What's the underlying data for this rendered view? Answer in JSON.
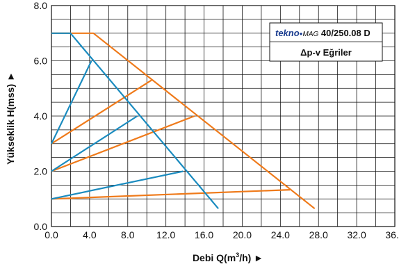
{
  "chart_data": {
    "type": "line",
    "xlabel": "Debi Q(m",
    "xlabel_sup": "3",
    "xlabel_tail": "/h) ►",
    "ylabel": "Yükseklik H(mss) ►",
    "xlim": [
      0,
      36
    ],
    "ylim": [
      0,
      8
    ],
    "x_grid_step": 2,
    "y_grid_step": 0.5,
    "grid": true,
    "x_ticks": [
      {
        "v": 0,
        "label": "0.0"
      },
      {
        "v": 4,
        "label": "4.0"
      },
      {
        "v": 8,
        "label": "8.0"
      },
      {
        "v": 12,
        "label": "12.0"
      },
      {
        "v": 16,
        "label": "16.0"
      },
      {
        "v": 20,
        "label": "20.0"
      },
      {
        "v": 24,
        "label": "24.0"
      },
      {
        "v": 28,
        "label": "28.0"
      },
      {
        "v": 32,
        "label": "32.0"
      },
      {
        "v": 36,
        "label": "36.0"
      }
    ],
    "y_ticks": [
      {
        "v": 0,
        "label": "0.0"
      },
      {
        "v": 2,
        "label": "2.0"
      },
      {
        "v": 4,
        "label": "4.0"
      },
      {
        "v": 6,
        "label": "6.0"
      },
      {
        "v": 8,
        "label": "8.0"
      }
    ],
    "title_box": {
      "brand": "tekno",
      "brand_mark": "●",
      "model_prefix": "MAG",
      "model": " 40/250.08 D",
      "subtitle": "Δp-v Eğriler"
    },
    "colors": {
      "blue": "#1a8bbf",
      "orange": "#ef7a1a"
    },
    "series": [
      {
        "color": "orange",
        "points": [
          [
            0,
            7.0
          ],
          [
            4.4,
            7.0
          ],
          [
            27.6,
            0.65
          ]
        ]
      },
      {
        "color": "orange",
        "points": [
          [
            0,
            3.0
          ],
          [
            10.5,
            5.3
          ]
        ]
      },
      {
        "color": "orange",
        "points": [
          [
            0,
            2.0
          ],
          [
            15.0,
            4.0
          ]
        ]
      },
      {
        "color": "orange",
        "points": [
          [
            0,
            1.0
          ],
          [
            25.0,
            1.33
          ]
        ]
      },
      {
        "color": "blue",
        "points": [
          [
            0,
            7.0
          ],
          [
            2.0,
            7.0
          ],
          [
            17.5,
            0.65
          ]
        ]
      },
      {
        "color": "blue",
        "points": [
          [
            0,
            3.0
          ],
          [
            4.2,
            6.0
          ]
        ]
      },
      {
        "color": "blue",
        "points": [
          [
            0,
            2.0
          ],
          [
            9.0,
            4.0
          ]
        ]
      },
      {
        "color": "blue",
        "points": [
          [
            0,
            1.0
          ],
          [
            13.8,
            2.0
          ]
        ]
      }
    ]
  }
}
